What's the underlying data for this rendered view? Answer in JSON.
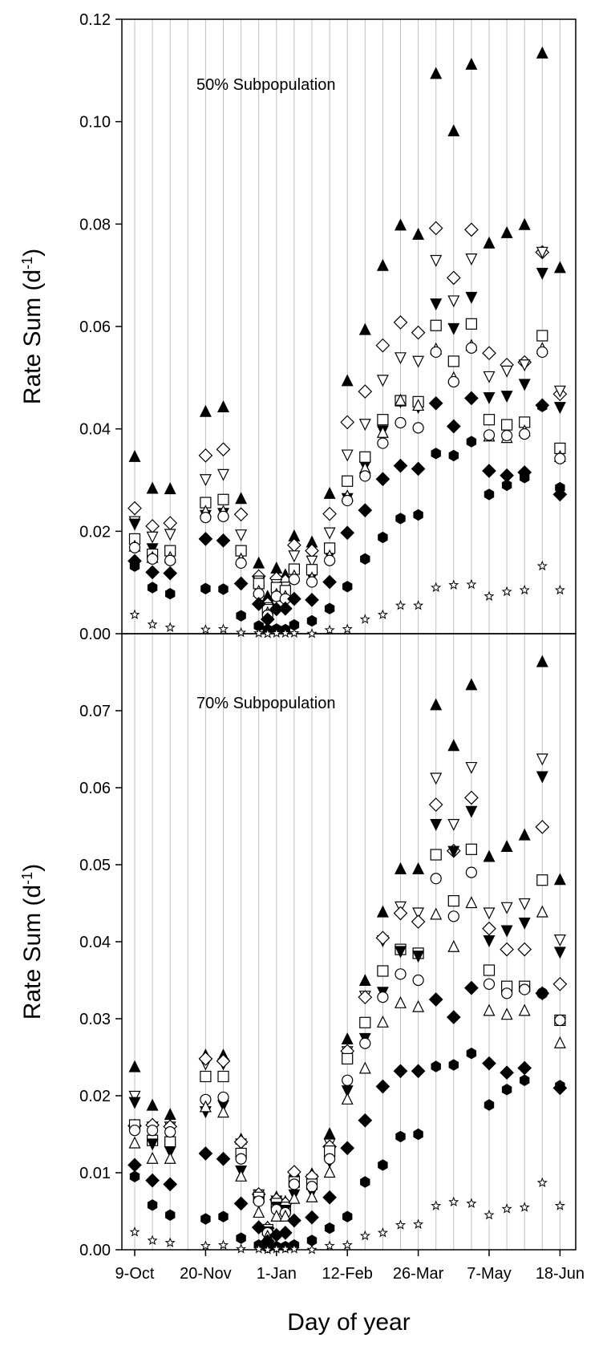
{
  "chart_data": [
    {
      "type": "scatter",
      "panel": "top",
      "annotation": "50% Subpopulation",
      "ylabel": "Rate Sum (d",
      "ylabel_sup": "-1",
      "ylabel_close": ")",
      "ylim": [
        0,
        0.12
      ],
      "yticks": [
        "0.00",
        "0.02",
        "0.04",
        "0.06",
        "0.08",
        "0.10",
        "0.12"
      ],
      "grid_vertical": true,
      "x": [
        282,
        289,
        296,
        310,
        317,
        324,
        331,
        338,
        345,
        352,
        359,
        366,
        373,
        380,
        387,
        394,
        401,
        408,
        415,
        422,
        429,
        436,
        443,
        450,
        457,
        464,
        471,
        478,
        485,
        492
      ],
      "series": [
        {
          "marker": "triangle-up-filled",
          "values": [
            0.0345,
            0.0283,
            0.0282,
            0.0433,
            0.0442,
            0.0263,
            0.0137,
            0.0072,
            0.0127,
            0.0114,
            0.019,
            0.0178,
            0.0273,
            0.0493,
            0.0593,
            0.0718,
            0.0797,
            0.0779,
            0.1093,
            0.0981,
            0.1111,
            0.0762,
            0.0782,
            0.0798,
            0.1133,
            0.0714
          ]
        },
        {
          "marker": "diamond-open",
          "values": [
            0.0245,
            0.021,
            0.0216,
            0.0348,
            0.036,
            0.0233,
            0.0112,
            0.0058,
            0.0108,
            0.0103,
            0.0173,
            0.0162,
            0.0234,
            0.0413,
            0.0473,
            0.0563,
            0.0608,
            0.0588,
            0.0792,
            0.0695,
            0.0789,
            0.0548,
            0.0525,
            0.053,
            0.0745,
            0.0468
          ]
        },
        {
          "marker": "triangle-down-open",
          "values": [
            0.022,
            0.019,
            0.0195,
            0.0302,
            0.0312,
            0.0194,
            0.0104,
            0.0052,
            0.0097,
            0.0092,
            0.0153,
            0.0143,
            0.0198,
            0.035,
            0.041,
            0.0496,
            0.054,
            0.0533,
            0.073,
            0.0651,
            0.0733,
            0.0503,
            0.0514,
            0.0526,
            0.0746,
            0.0475
          ]
        },
        {
          "marker": "triangle-down-filled",
          "values": [
            0.0215,
            0.0167,
            0.016,
            0.0232,
            0.0236,
            0.0155,
            0.0085,
            0.0043,
            0.0078,
            0.0074,
            0.0116,
            0.0111,
            0.0153,
            0.0265,
            0.0328,
            0.0397,
            0.0454,
            0.0443,
            0.0645,
            0.0597,
            0.0658,
            0.0462,
            0.0465,
            0.0488,
            0.0705,
            0.0443
          ]
        },
        {
          "marker": "square-open",
          "values": [
            0.0185,
            0.0155,
            0.0162,
            0.0256,
            0.0262,
            0.0162,
            0.0098,
            0.0047,
            0.009,
            0.0084,
            0.0126,
            0.0125,
            0.0167,
            0.0298,
            0.0345,
            0.0418,
            0.0455,
            0.0453,
            0.0602,
            0.0532,
            0.0605,
            0.0418,
            0.0408,
            0.0413,
            0.0582,
            0.0362
          ]
        },
        {
          "marker": "triangle-up-open",
          "values": [
            0.017,
            0.0148,
            0.0148,
            0.0238,
            0.0238,
            0.0145,
            0.0082,
            0.004,
            0.0076,
            0.0072,
            0.0112,
            0.0108,
            0.0151,
            0.0268,
            0.0322,
            0.0392,
            0.0455,
            0.0445,
            0.0555,
            0.0499,
            0.0562,
            0.0385,
            0.0382,
            0.0395,
            0.0556,
            0.0345
          ]
        },
        {
          "marker": "circle-open",
          "values": [
            0.0168,
            0.0146,
            0.0143,
            0.0227,
            0.0229,
            0.0138,
            0.0078,
            0.0036,
            0.0073,
            0.0068,
            0.0106,
            0.0101,
            0.0143,
            0.026,
            0.0308,
            0.0372,
            0.0412,
            0.0402,
            0.055,
            0.0492,
            0.0558,
            0.0388,
            0.0387,
            0.039,
            0.055,
            0.0342
          ]
        },
        {
          "marker": "diamond-filled",
          "values": [
            0.0142,
            0.012,
            0.0118,
            0.0185,
            0.0182,
            0.0098,
            0.0058,
            0.0028,
            0.0048,
            0.0049,
            0.0068,
            0.0066,
            0.0101,
            0.0197,
            0.0241,
            0.0302,
            0.0328,
            0.0322,
            0.045,
            0.0405,
            0.046,
            0.0318,
            0.0309,
            0.0315,
            0.0446,
            0.0272
          ]
        },
        {
          "marker": "hexagon-filled",
          "values": [
            0.0132,
            0.009,
            0.0078,
            0.0088,
            0.0087,
            0.0035,
            0.0015,
            0.0008,
            0.0009,
            0.0008,
            0.0017,
            0.0025,
            0.0049,
            0.0092,
            0.0146,
            0.0188,
            0.0225,
            0.0232,
            0.0352,
            0.0348,
            0.0375,
            0.0272,
            0.029,
            0.0305,
            0.0444,
            0.0285
          ]
        },
        {
          "marker": "star-open",
          "values": [
            0.0037,
            0.0018,
            0.0012,
            0.0008,
            0.0009,
            0.0002,
            0.0001,
            0.0,
            0.0001,
            0.0001,
            0.0001,
            0.0,
            0.0007,
            0.0009,
            0.0028,
            0.0037,
            0.0055,
            0.0055,
            0.009,
            0.0095,
            0.0096,
            0.0073,
            0.0082,
            0.0085,
            0.0132,
            0.0085
          ]
        }
      ],
      "x_index": [
        0,
        2,
        4,
        8,
        10,
        12,
        14,
        15,
        16,
        17,
        18,
        20,
        22,
        24,
        26,
        28,
        30,
        32,
        34,
        36,
        38,
        40,
        42,
        44,
        46,
        48
      ]
    },
    {
      "type": "scatter",
      "panel": "bottom",
      "annotation": "70% Subpopulation",
      "ylabel": "Rate Sum (d",
      "ylabel_sup": "-1",
      "ylabel_close": ")",
      "xlabel": "Day of year",
      "ylim": [
        0,
        0.08
      ],
      "yticks": [
        "0.00",
        "0.01",
        "0.02",
        "0.03",
        "0.04",
        "0.05",
        "0.06",
        "0.07"
      ],
      "xticks": [
        "9-Oct",
        "20-Nov",
        "1-Jan",
        "12-Feb",
        "26-Mar",
        "7-May",
        "18-Jun"
      ],
      "grid_vertical": true,
      "series": [
        {
          "marker": "triangle-up-filled",
          "values": [
            0.0237,
            0.0187,
            0.0175,
            0.0252,
            0.0252,
            0.0143,
            0.0068,
            0.0029,
            0.0068,
            0.0062,
            0.0101,
            0.0098,
            0.015,
            0.0273,
            0.0349,
            0.0438,
            0.0494,
            0.0494,
            0.0707,
            0.0654,
            0.0733,
            0.051,
            0.0523,
            0.0538,
            0.0763,
            0.048
          ]
        },
        {
          "marker": "triangle-down-open",
          "values": [
            0.02,
            0.016,
            0.016,
            0.0242,
            0.0242,
            0.0138,
            0.0072,
            0.0027,
            0.0064,
            0.0056,
            0.0095,
            0.0092,
            0.0138,
            0.0258,
            0.033,
            0.0402,
            0.0446,
            0.0438,
            0.0613,
            0.0553,
            0.0627,
            0.0438,
            0.0445,
            0.045,
            0.0638,
            0.0403
          ]
        },
        {
          "marker": "diamond-open",
          "values": [
            0.0161,
            0.0162,
            0.016,
            0.0248,
            0.0245,
            0.014,
            0.0072,
            0.0028,
            0.0065,
            0.006,
            0.0101,
            0.0095,
            0.0134,
            0.0258,
            0.0328,
            0.0405,
            0.0437,
            0.0426,
            0.0578,
            0.0518,
            0.0587,
            0.0417,
            0.039,
            0.039,
            0.0549,
            0.0345
          ]
        },
        {
          "marker": "square-open",
          "values": [
            0.0162,
            0.0142,
            0.014,
            0.0225,
            0.0225,
            0.0125,
            0.0068,
            0.0026,
            0.006,
            0.0055,
            0.0088,
            0.0085,
            0.0128,
            0.0248,
            0.0295,
            0.0362,
            0.039,
            0.0385,
            0.0513,
            0.0453,
            0.052,
            0.0363,
            0.0342,
            0.0342,
            0.048,
            0.0298
          ]
        },
        {
          "marker": "triangle-down-filled",
          "values": [
            0.0192,
            0.0138,
            0.0128,
            0.018,
            0.0188,
            0.0103,
            0.0063,
            0.0024,
            0.0056,
            0.0052,
            0.0072,
            0.0075,
            0.0115,
            0.0207,
            0.0275,
            0.0335,
            0.0388,
            0.0382,
            0.0553,
            0.0518,
            0.057,
            0.0402,
            0.0415,
            0.0425,
            0.0615,
            0.0387
          ]
        },
        {
          "marker": "circle-open",
          "values": [
            0.0155,
            0.0155,
            0.0153,
            0.0195,
            0.0198,
            0.0118,
            0.0063,
            0.0022,
            0.0052,
            0.0048,
            0.0085,
            0.0082,
            0.0118,
            0.022,
            0.0268,
            0.0328,
            0.0358,
            0.035,
            0.0482,
            0.0433,
            0.049,
            0.0345,
            0.0333,
            0.0338,
            0.0333,
            0.0298
          ]
        },
        {
          "marker": "triangle-up-open",
          "values": [
            0.0138,
            0.0118,
            0.0118,
            0.0185,
            0.0178,
            0.0095,
            0.0048,
            0.0017,
            0.0043,
            0.0043,
            0.0066,
            0.0068,
            0.01,
            0.0195,
            0.0235,
            0.0295,
            0.032,
            0.0315,
            0.0435,
            0.0393,
            0.045,
            0.031,
            0.0305,
            0.031,
            0.0438,
            0.0268
          ]
        },
        {
          "marker": "diamond-filled",
          "values": [
            0.011,
            0.009,
            0.0085,
            0.0125,
            0.0118,
            0.006,
            0.0029,
            0.0011,
            0.0019,
            0.0022,
            0.0038,
            0.0042,
            0.0068,
            0.0132,
            0.0168,
            0.0212,
            0.0232,
            0.0232,
            0.0325,
            0.0302,
            0.034,
            0.0242,
            0.023,
            0.0236,
            0.0333,
            0.021
          ]
        },
        {
          "marker": "hexagon-filled",
          "values": [
            0.0095,
            0.0058,
            0.0045,
            0.004,
            0.0043,
            0.0015,
            0.0006,
            0.0003,
            0.0004,
            0.0004,
            0.0006,
            0.0012,
            0.0028,
            0.0043,
            0.0088,
            0.011,
            0.0147,
            0.015,
            0.0238,
            0.024,
            0.0255,
            0.0188,
            0.0208,
            0.022,
            0.0333,
            0.0213
          ]
        },
        {
          "marker": "star-open",
          "values": [
            0.0023,
            0.0012,
            0.0009,
            0.0005,
            0.0006,
            0.0001,
            0.0001,
            0.0,
            0.0001,
            0.0001,
            0.0001,
            0.0,
            0.0005,
            0.0006,
            0.0018,
            0.0022,
            0.0032,
            0.0033,
            0.0057,
            0.0062,
            0.006,
            0.0045,
            0.0053,
            0.0055,
            0.0087,
            0.0057
          ]
        }
      ],
      "x_index": [
        0,
        2,
        4,
        8,
        10,
        12,
        14,
        15,
        16,
        17,
        18,
        20,
        22,
        24,
        26,
        28,
        30,
        32,
        34,
        36,
        38,
        40,
        42,
        44,
        46,
        48
      ]
    }
  ]
}
